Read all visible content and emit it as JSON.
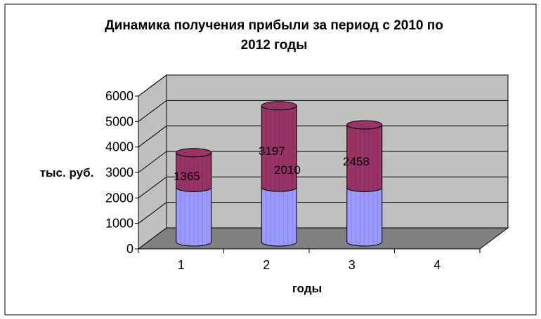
{
  "chart_data": {
    "type": "bar",
    "stacked": true,
    "three_d": true,
    "title_line1": "Динамика получения  прибыли за период с 2010 по",
    "title_line2": "2012 годы",
    "xlabel": "годы",
    "ylabel": "тыс. руб.",
    "categories": [
      "1",
      "2",
      "3",
      "4"
    ],
    "ylim": [
      0,
      6000
    ],
    "yticks": [
      "0",
      "1000",
      "2000",
      "3000",
      "4000",
      "5000",
      "6000"
    ],
    "grid": true,
    "series": [
      {
        "values": [
          2000,
          2010,
          2000,
          null
        ],
        "label_visible": [
          false,
          true,
          false,
          false
        ]
      },
      {
        "values": [
          1365,
          3197,
          2458,
          null
        ],
        "label_visible": [
          true,
          true,
          true,
          false
        ]
      }
    ],
    "data_labels": [
      "1365",
      "3197",
      "2010",
      "2458"
    ],
    "colors": {
      "series1": "#9999ff",
      "series2": "#993366",
      "walls": "#c0c0c0",
      "floor": "#808080",
      "border": "#000000"
    }
  }
}
